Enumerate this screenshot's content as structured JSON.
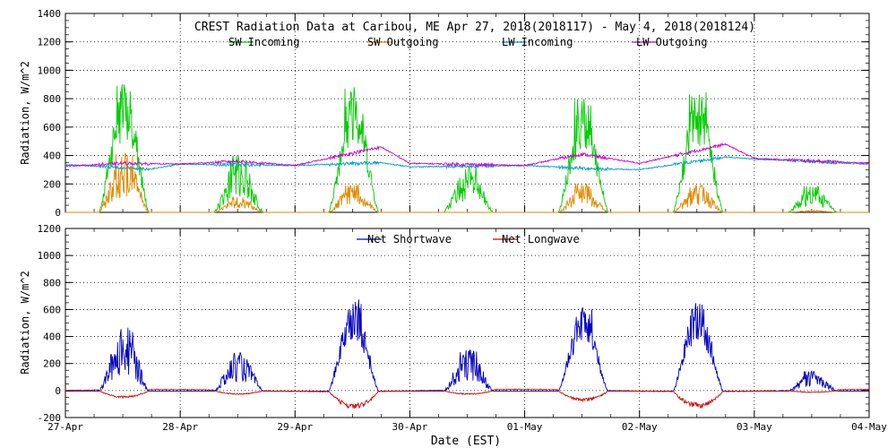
{
  "chart_data": [
    {
      "type": "line",
      "title": "CREST Radiation Data at Caribou, ME   Apr 27, 2018(2018117) - May  4, 2018(2018124)",
      "ylabel": "Radiation, W/m^2",
      "xlabel": "",
      "ylim": [
        0,
        1400
      ],
      "yticks": [
        0,
        200,
        400,
        600,
        800,
        1000,
        1200,
        1400
      ],
      "xlim": [
        "2018-04-27",
        "2018-05-04"
      ],
      "grid": true,
      "legend": "top",
      "series": [
        {
          "name": "SW Incoming",
          "color": "#00cc00",
          "days": [
            {
              "peak": 920,
              "min": 0
            },
            {
              "peak": 400,
              "min": 0
            },
            {
              "peak": 900,
              "min": 0
            },
            {
              "peak": 330,
              "min": 0
            },
            {
              "peak": 800,
              "min": 0
            },
            {
              "peak": 850,
              "min": 0
            },
            {
              "peak": 190,
              "min": 0
            }
          ]
        },
        {
          "name": "SW Outgoing",
          "color": "#e08a00",
          "days": [
            {
              "peak": 430
            },
            {
              "peak": 110
            },
            {
              "peak": 200
            },
            {
              "peak": 0
            },
            {
              "peak": 200
            },
            {
              "peak": 195
            },
            {
              "peak": 15
            }
          ]
        },
        {
          "name": "LW Incoming",
          "color": "#00a0c8",
          "baseline": [
            {
              "x": "2018-04-27T00",
              "y": 335
            },
            {
              "x": "2018-04-27T18",
              "y": 305
            },
            {
              "x": "2018-04-28T00",
              "y": 340
            },
            {
              "x": "2018-04-29T00",
              "y": 330
            },
            {
              "x": "2018-04-29T18",
              "y": 350
            },
            {
              "x": "2018-04-30T00",
              "y": 320
            },
            {
              "x": "2018-05-01T00",
              "y": 330
            },
            {
              "x": "2018-05-01T12",
              "y": 310
            },
            {
              "x": "2018-05-02T00",
              "y": 300
            },
            {
              "x": "2018-05-02T18",
              "y": 390
            },
            {
              "x": "2018-05-03T00",
              "y": 375
            },
            {
              "x": "2018-05-04T00",
              "y": 340
            }
          ]
        },
        {
          "name": "LW Outgoing",
          "color": "#d000d0",
          "baseline": [
            {
              "x": "2018-04-27T00",
              "y": 325
            },
            {
              "x": "2018-04-27T12",
              "y": 345
            },
            {
              "x": "2018-04-28T00",
              "y": 340
            },
            {
              "x": "2018-04-28T12",
              "y": 360
            },
            {
              "x": "2018-04-29T00",
              "y": 330
            },
            {
              "x": "2018-04-29T18",
              "y": 460
            },
            {
              "x": "2018-04-30T00",
              "y": 345
            },
            {
              "x": "2018-05-01T00",
              "y": 330
            },
            {
              "x": "2018-05-01T12",
              "y": 410
            },
            {
              "x": "2018-05-02T00",
              "y": 345
            },
            {
              "x": "2018-05-02T18",
              "y": 480
            },
            {
              "x": "2018-05-03T00",
              "y": 380
            },
            {
              "x": "2018-05-04T00",
              "y": 345
            }
          ]
        }
      ]
    },
    {
      "type": "line",
      "title": "",
      "ylabel": "Radiation, W/m^2",
      "xlabel": "Date (EST)",
      "ylim": [
        -200,
        1200
      ],
      "yticks": [
        -200,
        0,
        200,
        400,
        600,
        800,
        1000,
        1200
      ],
      "xlim": [
        "2018-04-27",
        "2018-05-04"
      ],
      "xticks": [
        "27-Apr",
        "28-Apr",
        "29-Apr",
        "30-Apr",
        "01-May",
        "02-May",
        "03-May",
        "04-May"
      ],
      "grid": true,
      "legend": "top",
      "series": [
        {
          "name": "Net Shortwave",
          "color": "#0000c0",
          "days": [
            {
              "peak": 480,
              "min": -5
            },
            {
              "peak": 290,
              "min": -5
            },
            {
              "peak": 690,
              "min": -5
            },
            {
              "peak": 310,
              "min": -5
            },
            {
              "peak": 640,
              "min": -5
            },
            {
              "peak": 670,
              "min": -5
            },
            {
              "peak": 150,
              "min": -5
            }
          ]
        },
        {
          "name": "Net Longwave",
          "color": "#d00000",
          "days": [
            {
              "low": -55
            },
            {
              "low": -30
            },
            {
              "low": -135
            },
            {
              "low": -30
            },
            {
              "low": -80
            },
            {
              "low": -130
            },
            {
              "low": -15
            }
          ],
          "night": 0
        }
      ]
    }
  ]
}
